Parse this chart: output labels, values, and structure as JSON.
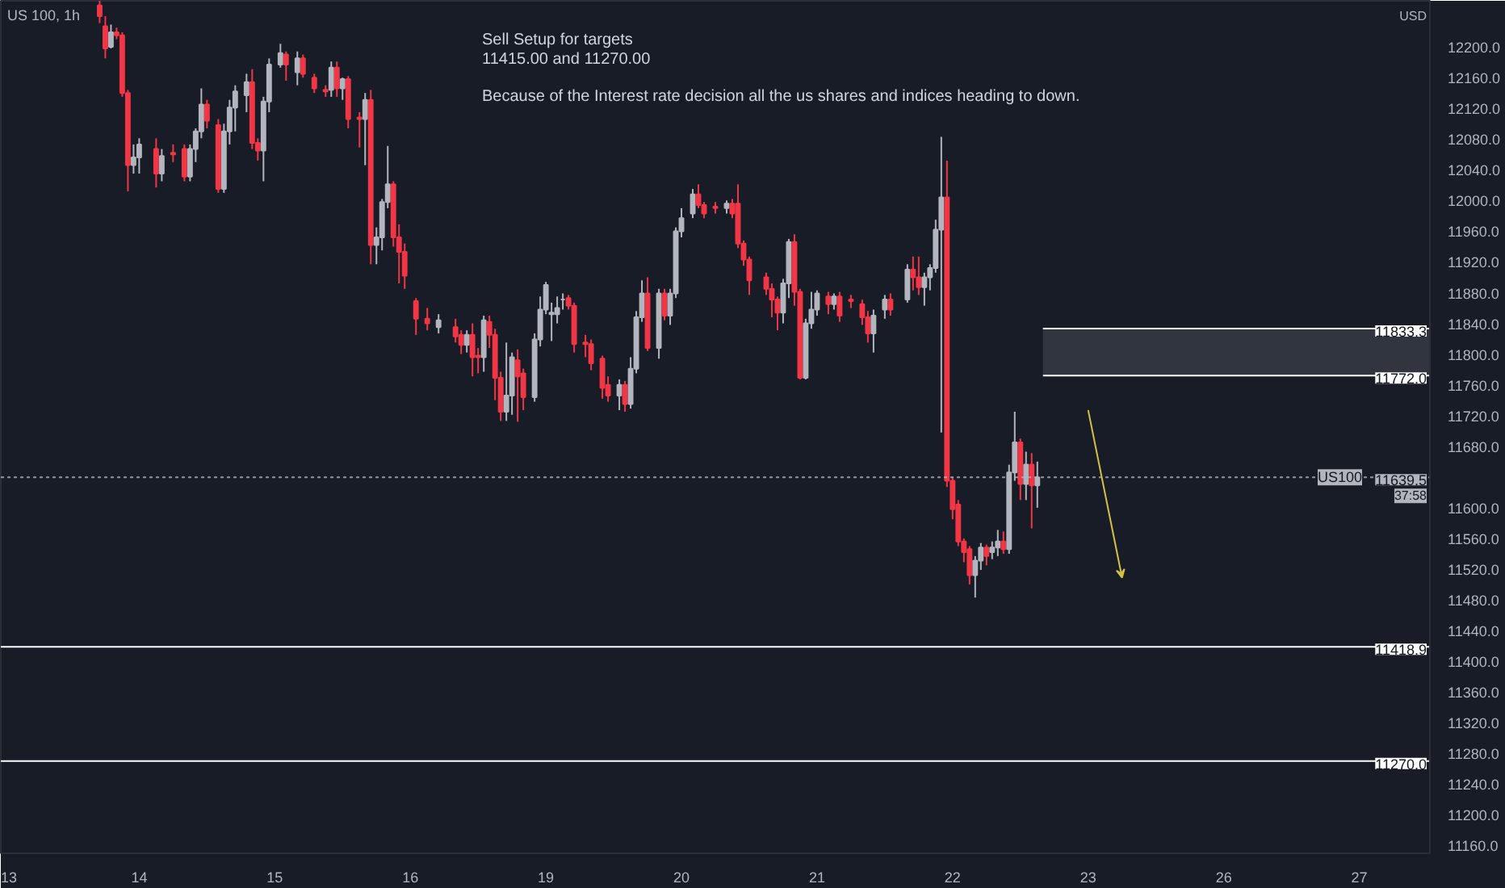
{
  "chart_data": {
    "type": "candlestick",
    "title": "US 100, 1h",
    "ylabel": "USD",
    "annotations": [
      "Sell Setup for targets",
      "11415.00   and   11270.00",
      "Because of the Interest rate decision all the us shares and indices heading to down.",
      "11639.5",
      "37:58"
    ],
    "categories": [
      "13",
      null,
      null,
      null,
      null,
      null,
      null,
      null,
      null,
      null,
      null,
      null,
      null,
      null,
      null,
      null,
      null,
      null,
      null,
      null,
      null,
      null,
      null,
      null,
      "14",
      null,
      null,
      null,
      null,
      null,
      null,
      null,
      null,
      null,
      null,
      null,
      null,
      null,
      null,
      null,
      null,
      null,
      null,
      null,
      null,
      null,
      null,
      null,
      "15",
      null,
      null,
      null,
      null,
      null,
      null,
      null,
      null,
      null,
      null,
      null,
      null,
      null,
      null,
      null,
      null,
      null,
      null,
      null,
      null,
      null,
      null,
      null,
      "16",
      null,
      null,
      null,
      null,
      null,
      null,
      null,
      null,
      null,
      null,
      null,
      null,
      null,
      null,
      null,
      null,
      null,
      null,
      null,
      null,
      null,
      null,
      null,
      "19",
      null,
      null,
      null,
      null,
      null,
      null,
      null,
      null,
      null,
      null,
      null,
      null,
      null,
      null,
      null,
      null,
      null,
      null,
      null,
      null,
      null,
      null,
      null,
      "20",
      null,
      null,
      null,
      null,
      null,
      null,
      null,
      null,
      null,
      null,
      null,
      null,
      null,
      null,
      null,
      null,
      null,
      null,
      null,
      null,
      null,
      null,
      null,
      "21",
      null,
      null,
      null,
      null,
      null,
      null,
      null,
      null,
      null,
      null,
      null,
      null,
      null,
      null,
      null,
      null,
      null,
      null,
      null,
      null,
      null,
      null,
      null,
      "22",
      null,
      null,
      null,
      null,
      null,
      null,
      null,
      null,
      null,
      null,
      null,
      null,
      null,
      null,
      null,
      null,
      null,
      null,
      null,
      null,
      null,
      null,
      null,
      "23",
      null,
      null,
      null,
      null,
      null,
      null,
      null,
      null,
      null,
      null,
      null,
      null,
      null,
      null,
      null,
      null,
      null,
      null,
      null,
      null,
      null,
      null,
      null,
      "26",
      null,
      null,
      null,
      null,
      null,
      null,
      null,
      null,
      null,
      null,
      null,
      null,
      null,
      null,
      null,
      null,
      null,
      null,
      null,
      null,
      null,
      null,
      null,
      "27",
      null,
      null,
      null,
      null,
      null,
      null,
      null,
      null,
      null,
      null,
      null,
      null
    ],
    "ohlc": [
      null,
      null,
      null,
      null,
      null,
      null,
      null,
      null,
      null,
      null,
      null,
      null,
      null,
      null,
      null,
      null,
      null,
      [
        12254,
        12260,
        12231,
        12240
      ],
      [
        12227,
        12240,
        12185,
        12198
      ],
      [
        12200,
        12229,
        12198,
        12219
      ],
      [
        12219,
        12225,
        12210,
        12215
      ],
      [
        12215,
        12219,
        12135,
        12140
      ],
      [
        12140,
        12144,
        12012,
        12046
      ],
      [
        12046,
        12073,
        12035,
        12056
      ],
      [
        12056,
        12081,
        12035,
        12073
      ],
      null,
      null,
      [
        12067,
        12081,
        12017,
        12035
      ],
      [
        12035,
        12067,
        12025,
        12058
      ],
      null,
      [
        12062,
        12073,
        12050,
        12060
      ],
      null,
      [
        12067,
        12073,
        12025,
        12031
      ],
      [
        12031,
        12073,
        12025,
        12067
      ],
      [
        12067,
        12094,
        12050,
        12090
      ],
      [
        12090,
        12146,
        12081,
        12125
      ],
      [
        12125,
        12131,
        12094,
        12104
      ],
      null,
      [
        12098,
        12106,
        12010,
        12015
      ],
      [
        12015,
        12100,
        12010,
        12090
      ],
      [
        12090,
        12131,
        12073,
        12121
      ],
      [
        12121,
        12150,
        12090,
        12142
      ],
      null,
      [
        12137,
        12165,
        12115,
        12154
      ],
      [
        12154,
        12171,
        12067,
        12075
      ],
      [
        12075,
        12081,
        12052,
        12065
      ],
      [
        12065,
        12135,
        12025,
        12129
      ],
      [
        12129,
        12185,
        12115,
        12177
      ],
      null,
      [
        12177,
        12204,
        12173,
        12192
      ],
      [
        12190,
        12194,
        12156,
        12177
      ],
      null,
      [
        12167,
        12194,
        12150,
        12185
      ],
      [
        12185,
        12190,
        12160,
        12165
      ],
      null,
      [
        12160,
        12165,
        12140,
        12146
      ],
      null,
      [
        12144,
        12150,
        12135,
        12142
      ],
      [
        12144,
        12181,
        12135,
        12173
      ],
      [
        12173,
        12181,
        12135,
        12146
      ],
      [
        12146,
        12160,
        12131,
        12158
      ],
      [
        12158,
        12162,
        12094,
        12106
      ],
      null,
      [
        12108,
        12115,
        12069,
        12106
      ],
      [
        12106,
        12140,
        12046,
        12131
      ],
      [
        12131,
        12144,
        11917,
        11942
      ],
      [
        11942,
        11965,
        11917,
        11952
      ],
      [
        11952,
        12002,
        11935,
        11998
      ],
      [
        11998,
        12071,
        11990,
        12021
      ],
      [
        12021,
        12025,
        11940,
        11952
      ],
      [
        11952,
        11969,
        11892,
        11933
      ],
      [
        11933,
        11944,
        11885,
        11902
      ],
      null,
      [
        11869,
        11873,
        11825,
        11846
      ],
      null,
      [
        11846,
        11860,
        11831,
        11840
      ],
      null,
      [
        11835,
        11852,
        11827,
        11844
      ],
      null,
      null,
      [
        11835,
        11846,
        11815,
        11823
      ],
      [
        11825,
        11831,
        11800,
        11812
      ],
      [
        11812,
        11831,
        11802,
        11825
      ],
      [
        11825,
        11840,
        11771,
        11796
      ],
      [
        11798,
        11808,
        11775,
        11796
      ],
      [
        11796,
        11850,
        11777,
        11844
      ],
      [
        11842,
        11850,
        11808,
        11825
      ],
      [
        11825,
        11833,
        11740,
        11769
      ],
      [
        11769,
        11777,
        11713,
        11725
      ],
      [
        11725,
        11815,
        11713,
        11746
      ],
      [
        11746,
        11802,
        11721,
        11796
      ],
      [
        11792,
        11806,
        11712,
        11771
      ],
      [
        11775,
        11781,
        11727,
        11744
      ],
      null,
      [
        11744,
        11827,
        11738,
        11819
      ],
      [
        11819,
        11875,
        11810,
        11858
      ],
      [
        11858,
        11894,
        11852,
        11890
      ],
      [
        11852,
        11867,
        11817,
        11854
      ],
      [
        11852,
        11875,
        11840,
        11860
      ],
      [
        11871,
        11879,
        11858,
        11871
      ],
      [
        11873,
        11877,
        11858,
        11863
      ],
      [
        11863,
        11867,
        11802,
        11813
      ],
      null,
      [
        11815,
        11825,
        11796,
        11813
      ],
      [
        11813,
        11819,
        11779,
        11788
      ],
      null,
      [
        11794,
        11798,
        11742,
        11756
      ],
      [
        11760,
        11771,
        11738,
        11746
      ],
      null,
      [
        11746,
        11767,
        11727,
        11760
      ],
      [
        11760,
        11765,
        11725,
        11735
      ],
      [
        11735,
        11796,
        11729,
        11781
      ],
      [
        11781,
        11856,
        11775,
        11848
      ],
      [
        11848,
        11896,
        11842,
        11879
      ],
      [
        11879,
        11900,
        11804,
        11808
      ],
      null,
      [
        11808,
        11885,
        11794,
        11879
      ],
      [
        11879,
        11885,
        11844,
        11850
      ],
      [
        11850,
        11885,
        11838,
        11879
      ],
      [
        11879,
        11965,
        11873,
        11960
      ],
      [
        11960,
        11990,
        11952,
        11977
      ],
      null,
      [
        11983,
        12015,
        11977,
        12008
      ],
      [
        12008,
        12021,
        11990,
        11994
      ],
      [
        11994,
        11998,
        11977,
        11983
      ],
      null,
      [
        11992,
        11998,
        11983,
        11990
      ],
      null,
      [
        11990,
        12000,
        11983,
        11996
      ],
      [
        11996,
        12002,
        11977,
        11983
      ],
      [
        11996,
        12021,
        11938,
        11944
      ],
      [
        11944,
        11948,
        11915,
        11923
      ],
      [
        11923,
        11927,
        11877,
        11896
      ],
      null,
      null,
      [
        11900,
        11906,
        11877,
        11885
      ],
      [
        11885,
        11892,
        11848,
        11871
      ],
      [
        11871,
        11875,
        11831,
        11854
      ],
      [
        11854,
        11898,
        11840,
        11892
      ],
      [
        11892,
        11950,
        11873,
        11946
      ],
      [
        11946,
        11956,
        11863,
        11881
      ],
      [
        11881,
        11885,
        11767,
        11769
      ],
      [
        11769,
        11846,
        11767,
        11840
      ],
      [
        11840,
        11881,
        11833,
        11858
      ],
      [
        11858,
        11883,
        11850,
        11879
      ],
      null,
      [
        11875,
        11881,
        11852,
        11865
      ],
      [
        11865,
        11879,
        11858,
        11875
      ],
      [
        11875,
        11881,
        11842,
        11850
      ],
      null,
      [
        11871,
        11877,
        11860,
        11869
      ],
      null,
      [
        11865,
        11871,
        11838,
        11848
      ],
      [
        11848,
        11856,
        11815,
        11827
      ],
      [
        11827,
        11858,
        11802,
        11850
      ],
      null,
      [
        11858,
        11877,
        11846,
        11871
      ],
      [
        11871,
        11879,
        11850,
        11858
      ],
      null,
      null,
      [
        11871,
        11917,
        11867,
        11910
      ],
      [
        11910,
        11927,
        11883,
        11900
      ],
      [
        11900,
        11927,
        11877,
        11887
      ],
      [
        11887,
        11906,
        11863,
        11900
      ],
      [
        11900,
        11917,
        11883,
        11912
      ],
      [
        11912,
        11975,
        11906,
        11962
      ],
      [
        11962,
        12083,
        11698,
        12004
      ],
      [
        12004,
        12052,
        11627,
        11635
      ],
      [
        11635,
        11640,
        11585,
        11598
      ],
      [
        11604,
        11610,
        11550,
        11556
      ],
      [
        11556,
        11560,
        11529,
        11542
      ],
      [
        11546,
        11550,
        11500,
        11512
      ],
      [
        11512,
        11537,
        11483,
        11531
      ],
      [
        11531,
        11554,
        11519,
        11548
      ],
      [
        11548,
        11552,
        11525,
        11537
      ],
      [
        11542,
        11556,
        11533,
        11548
      ],
      [
        11548,
        11571,
        11537,
        11556
      ],
      [
        11556,
        11569,
        11540,
        11546
      ],
      [
        11546,
        11656,
        11540,
        11646
      ],
      [
        11646,
        11725,
        11635,
        11685
      ],
      [
        11685,
        11690,
        11610,
        11631
      ],
      [
        11631,
        11673,
        11610,
        11656
      ],
      [
        11656,
        11671,
        11573,
        11629
      ],
      [
        11629,
        11660,
        11600,
        11639.5
      ],
      null,
      null,
      null,
      null,
      null,
      null,
      null,
      null,
      null,
      null,
      null,
      null,
      null,
      null,
      null,
      null,
      null,
      null,
      null,
      null,
      null,
      null,
      null,
      null,
      null,
      null,
      null,
      null,
      null,
      null,
      null,
      null,
      null,
      null,
      null,
      null,
      null,
      null,
      null,
      null,
      null,
      null,
      null,
      null,
      null,
      null,
      null,
      null,
      null,
      null,
      null,
      null,
      null,
      null,
      null,
      null,
      null,
      null,
      null,
      null,
      null,
      null,
      null,
      null,
      null,
      null,
      null,
      null,
      null
    ],
    "colors": [
      null,
      null,
      null,
      null,
      null,
      null,
      null,
      null,
      null,
      null,
      null,
      null,
      null,
      null,
      null,
      null,
      null,
      "#f23645",
      "#f23645",
      "#b2b5be",
      "#f23645",
      "#f23645",
      "#f23645",
      "#b2b5be",
      "#b2b5be",
      null,
      null,
      "#f23645",
      "#b2b5be",
      null,
      "#f23645",
      null,
      "#f23645",
      "#b2b5be",
      "#b2b5be",
      "#b2b5be",
      "#f23645",
      null,
      "#f23645",
      "#b2b5be",
      "#b2b5be",
      "#b2b5be",
      null,
      "#b2b5be",
      "#f23645",
      "#f23645",
      "#b2b5be",
      "#b2b5be",
      null,
      "#b2b5be",
      "#f23645",
      null,
      "#b2b5be",
      "#f23645",
      null,
      "#f23645",
      null,
      "#f23645",
      "#b2b5be",
      "#f23645",
      "#b2b5be",
      "#f23645",
      null,
      "#f23645",
      "#b2b5be",
      "#f23645",
      "#b2b5be",
      "#b2b5be",
      "#b2b5be",
      "#f23645",
      "#f23645",
      "#f23645",
      null,
      "#f23645",
      null,
      "#f23645",
      null,
      "#b2b5be",
      null,
      null,
      "#f23645",
      "#f23645",
      "#b2b5be",
      "#f23645",
      "#f23645",
      "#b2b5be",
      "#f23645",
      "#f23645",
      "#f23645",
      "#b2b5be",
      "#b2b5be",
      "#f23645",
      "#f23645",
      null,
      "#b2b5be",
      "#b2b5be",
      "#b2b5be",
      "#b2b5be",
      "#b2b5be",
      "#b2b5be",
      "#f23645",
      "#f23645",
      null,
      "#f23645",
      "#f23645",
      null,
      "#f23645",
      "#f23645",
      null,
      "#b2b5be",
      "#f23645",
      "#b2b5be",
      "#b2b5be",
      "#b2b5be",
      "#f23645",
      null,
      "#b2b5be",
      "#f23645",
      "#b2b5be",
      "#b2b5be",
      "#b2b5be",
      null,
      "#b2b5be",
      "#f23645",
      "#f23645",
      null,
      "#f23645",
      null,
      "#b2b5be",
      "#f23645",
      "#f23645",
      "#f23645",
      "#f23645",
      null,
      null,
      "#f23645",
      "#f23645",
      "#f23645",
      "#b2b5be",
      "#b2b5be",
      "#f23645",
      "#f23645",
      "#b2b5be",
      "#b2b5be",
      "#b2b5be",
      null,
      "#f23645",
      "#b2b5be",
      "#f23645",
      null,
      "#f23645",
      null,
      "#f23645",
      "#f23645",
      "#b2b5be",
      null,
      "#b2b5be",
      "#f23645",
      null,
      null,
      "#b2b5be",
      "#f23645",
      "#f23645",
      "#b2b5be",
      "#b2b5be",
      "#b2b5be",
      "#b2b5be",
      "#f23645",
      "#f23645",
      "#f23645",
      "#f23645",
      "#f23645",
      "#b2b5be",
      "#b2b5be",
      "#f23645",
      "#b2b5be",
      "#b2b5be",
      "#f23645",
      "#b2b5be",
      "#b2b5be",
      "#f23645",
      "#b2b5be",
      "#f23645",
      "#b2b5be",
      null,
      null,
      null,
      null,
      null,
      null,
      null,
      null,
      null,
      null,
      null,
      null,
      null,
      null,
      null,
      null,
      null,
      null,
      null,
      null,
      null,
      null,
      null,
      null,
      null,
      null,
      null,
      null,
      null,
      null,
      null,
      null,
      null,
      null,
      null,
      null,
      null,
      null,
      null,
      null,
      null,
      null,
      null,
      null,
      null,
      null,
      null,
      null,
      null,
      null,
      null,
      null,
      null,
      null,
      null,
      null,
      null,
      null,
      null,
      null,
      null,
      null,
      null,
      null,
      null,
      null,
      null,
      null,
      null
    ],
    "ylim": [
      11150,
      12260
    ],
    "yticks": [
      {
        "value": 11160,
        "label": "11160.0"
      },
      {
        "value": 11200,
        "label": "11200.0"
      },
      {
        "value": 11240,
        "label": "11240.0"
      },
      {
        "value": 11280,
        "label": "11280.0"
      },
      {
        "value": 11320,
        "label": "11320.0"
      },
      {
        "value": 11360,
        "label": "11360.0"
      },
      {
        "value": 11400,
        "label": "11400.0"
      },
      {
        "value": 11440,
        "label": "11440.0"
      },
      {
        "value": 11480,
        "label": "11480.0"
      },
      {
        "value": 11520,
        "label": "11520.0"
      },
      {
        "value": 11560,
        "label": "11560.0"
      },
      {
        "value": 11600,
        "label": "11600.0"
      },
      {
        "value": 11680,
        "label": "11680.0"
      },
      {
        "value": 11720,
        "label": "11720.0"
      },
      {
        "value": 11760,
        "label": "11760.0"
      },
      {
        "value": 11800,
        "label": "11800.0"
      },
      {
        "value": 11840,
        "label": "11840.0"
      },
      {
        "value": 11880,
        "label": "11880.0"
      },
      {
        "value": 11920,
        "label": "11920.0"
      },
      {
        "value": 11960,
        "label": "11960.0"
      },
      {
        "value": 12000,
        "label": "12000.0"
      },
      {
        "value": 12040,
        "label": "12040.0"
      },
      {
        "value": 12080,
        "label": "12080.0"
      },
      {
        "value": 12120,
        "label": "12120.0"
      },
      {
        "value": 12160,
        "label": "12160.0"
      },
      {
        "value": 12200,
        "label": "12200.0"
      }
    ],
    "bands": [
      {
        "axis": "y",
        "from": 11772.0,
        "to": 11833.3,
        "color": "#434651"
      }
    ],
    "ref_lines": [
      {
        "axis": "y",
        "value": 11833.3,
        "label": "11833.3",
        "color": "#ffffff"
      },
      {
        "axis": "y",
        "value": 11772.0,
        "label": "11772.0",
        "color": "#ffffff"
      },
      {
        "axis": "y",
        "value": 11418.9,
        "label": "11418.9",
        "color": "#ffffff"
      },
      {
        "axis": "y",
        "value": 11270.0,
        "label": "11270.0",
        "color": "#ffffff"
      },
      {
        "axis": "y",
        "value": 11639.5,
        "label": "US100",
        "color": "#b2b5be",
        "line_style": "dotted"
      }
    ],
    "grid": false
  }
}
